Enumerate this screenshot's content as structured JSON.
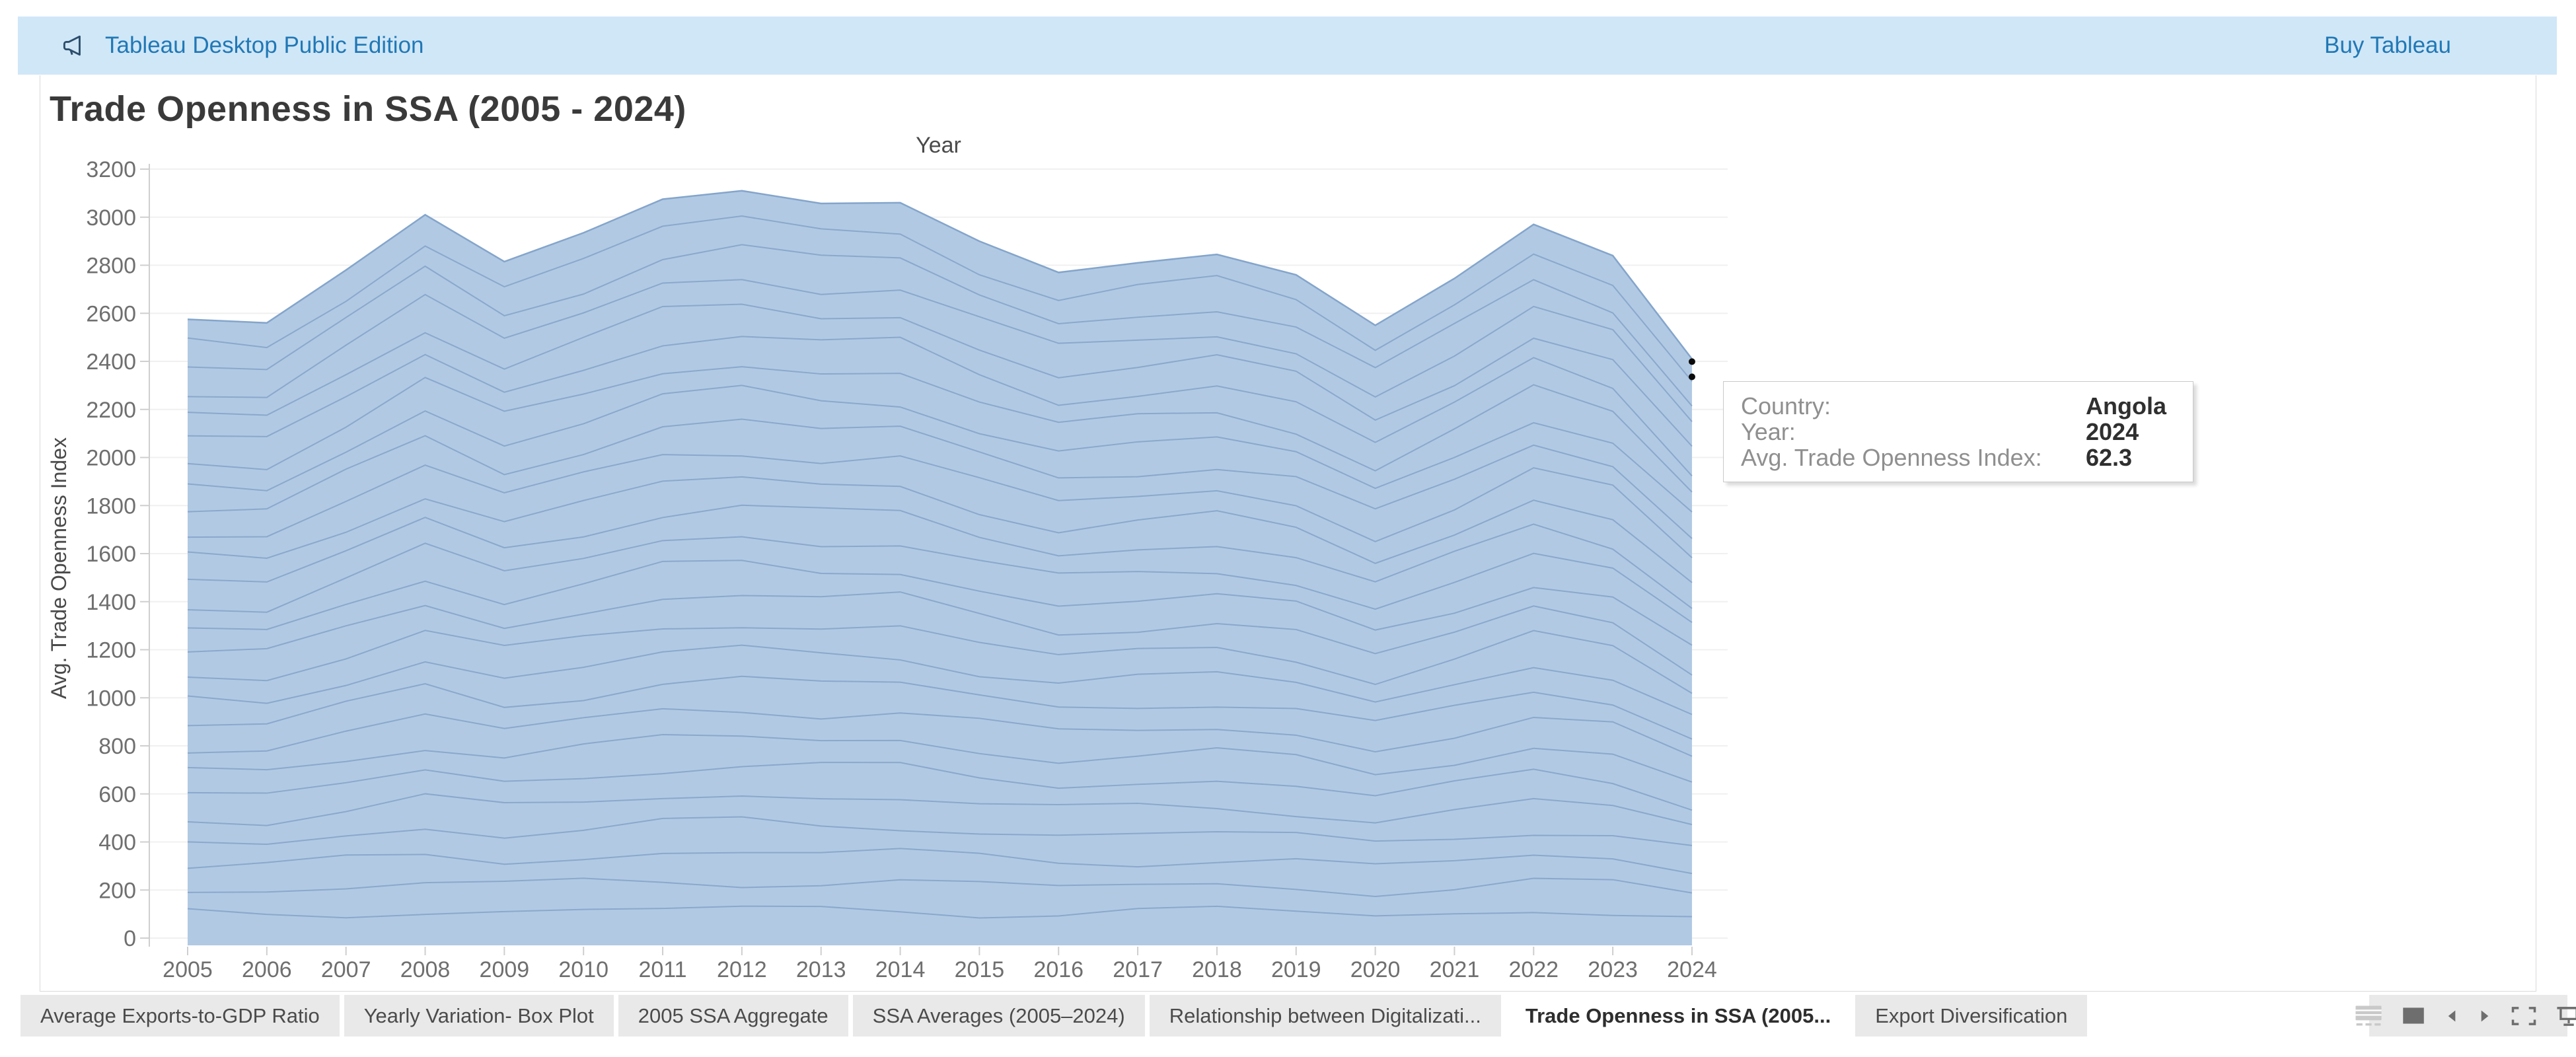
{
  "top_bar": {
    "product_label": "Tableau Desktop Public Edition",
    "buy_label": "Buy Tableau"
  },
  "dashboard": {
    "title": "Trade Openness in SSA (2005 - 2024)"
  },
  "chart_data": {
    "type": "area",
    "stacked": true,
    "title": "Trade Openness in SSA (2005 - 2024)",
    "xlabel": "Year",
    "ylabel": "Avg. Trade Openness Index",
    "x": [
      2005,
      2006,
      2007,
      2008,
      2009,
      2010,
      2011,
      2012,
      2013,
      2014,
      2015,
      2016,
      2017,
      2018,
      2019,
      2020,
      2021,
      2022,
      2023,
      2024
    ],
    "stack_total": [
      2575,
      2560,
      2780,
      3010,
      2815,
      2935,
      3075,
      3110,
      3057,
      3060,
      2900,
      2770,
      2810,
      2845,
      2760,
      2550,
      2745,
      2970,
      2840,
      2410
    ],
    "ylim": [
      0,
      3200
    ],
    "ytick_step": 200,
    "num_series_bands": 26,
    "series_note": "Stacked by Country (SSA countries); individual country bands are unlabeled in view",
    "grid": true,
    "legend": "none",
    "colors": {
      "fill": "#b1c9e3",
      "band_line": "#7fa0c7",
      "top_line": "#84a5cb",
      "gridline": "#f0f0f0",
      "axis": "#cfcfcf",
      "tick_text": "#6f6f6f",
      "axis_title": "#4a4a4a"
    }
  },
  "tooltip": {
    "rows": [
      {
        "label": "Country:",
        "value": "Angola"
      },
      {
        "label": "Year:",
        "value": "2024"
      },
      {
        "label": "Avg. Trade Openness Index:",
        "value": "62.3"
      }
    ]
  },
  "sheet_tabs": {
    "active_index": 5,
    "tabs": [
      "Average Exports-to-GDP Ratio",
      "Yearly Variation- Box Plot",
      "2005 SSA Aggregate",
      "SSA Averages (2005–2024)",
      "Relationship between Digitalizati...",
      "Trade Openness in SSA (2005...",
      "Export Diversification"
    ]
  },
  "status_bar": {
    "icons": [
      "show-sheet-sorter",
      "show-filmstrip",
      "previous-sheet",
      "next-sheet",
      "presentation-brackets",
      "presentation-mode"
    ]
  }
}
